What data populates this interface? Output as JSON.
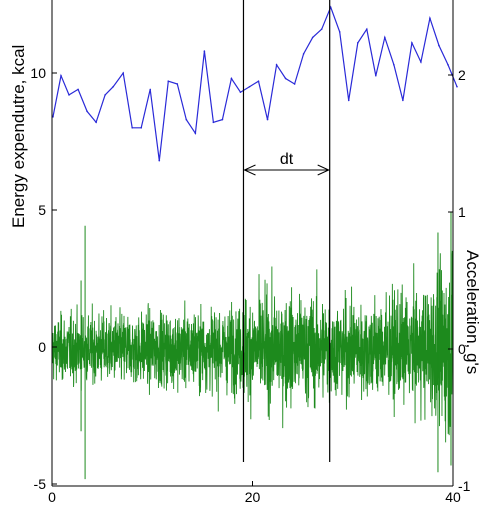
{
  "chart_data": {
    "type": "line",
    "ylabel_left": "Energy expendutre, kcal",
    "ylabel_right": "Acceleration, g's",
    "x_ticks": [
      "0",
      "20",
      "40"
    ],
    "y_left_ticks": [
      "10",
      "5",
      "0",
      "-5"
    ],
    "y_right_ticks": [
      "2",
      "1",
      "0",
      "-1"
    ],
    "xlim": [
      0,
      40
    ],
    "ylim_left": [
      -5,
      12.5
    ],
    "ylim_right": [
      -1,
      2.5
    ],
    "colors": {
      "energy": "#2a2ad8",
      "acceleration": "#1d8a1d",
      "markers": "#000000"
    },
    "marker_lines_x": [
      19.1,
      27.7
    ],
    "annotation": "dt",
    "series": [
      {
        "axis": "left",
        "x": [
          0.1,
          0.9,
          1.7,
          2.6,
          3.5,
          4.4,
          5.3,
          6.1,
          7.1,
          8.0,
          8.9,
          9.8,
          10.7,
          11.6,
          12.5,
          13.4,
          14.3,
          15.2,
          16.1,
          17.0,
          17.9,
          18.8,
          19.7,
          20.6,
          21.5,
          22.4,
          23.3,
          24.2,
          25.1,
          26.0,
          26.9,
          27.8,
          28.7,
          29.6,
          30.5,
          31.4,
          32.3,
          33.2,
          34.1,
          35.0,
          35.9,
          36.8,
          37.7,
          38.6,
          39.5,
          40.4
        ],
        "values": [
          8.4,
          9.9,
          9.2,
          9.4,
          8.6,
          8.2,
          9.2,
          9.5,
          10.0,
          8.0,
          8.0,
          9.4,
          6.8,
          9.7,
          9.6,
          8.3,
          7.8,
          10.8,
          8.2,
          8.3,
          9.8,
          9.3,
          9.5,
          9.7,
          8.3,
          10.3,
          9.8,
          9.6,
          10.7,
          11.3,
          11.6,
          12.4,
          11.5,
          9.0,
          11.1,
          11.6,
          9.9,
          11.3,
          10.3,
          9.0,
          11.1,
          10.4,
          12.0,
          11.0,
          10.3,
          9.5
        ]
      }
    ]
  }
}
